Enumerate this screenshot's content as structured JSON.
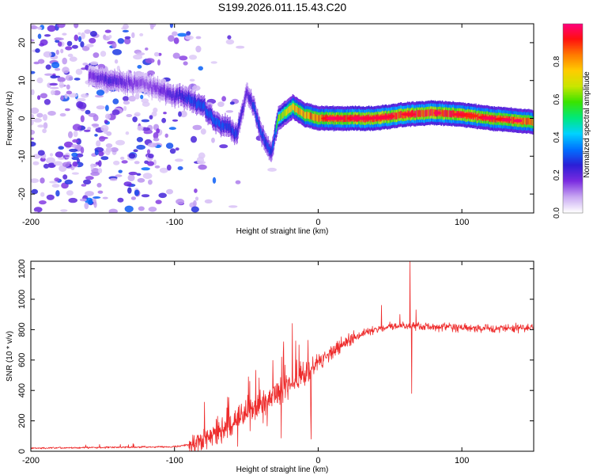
{
  "title": "S199.2026.011.15.43.C20",
  "chart_data": [
    {
      "type": "heatmap",
      "name": "spectrogram",
      "xlabel": "Height of straight line (km)",
      "ylabel": "Frequency (Hz)",
      "xlim": [
        -200,
        150
      ],
      "ylim": [
        -25,
        25
      ],
      "xticks": [
        -200,
        -100,
        0,
        100
      ],
      "yticks": [
        -20,
        -10,
        0,
        10,
        20
      ],
      "colorbar": {
        "label": "Normalized spectral amplitude",
        "range": [
          0,
          1
        ],
        "ticks": [
          "0.0",
          "0.2",
          "0.4",
          "0.6",
          "0.8"
        ],
        "colors": [
          "#ffffff",
          "#c7a6f2",
          "#7a2be0",
          "#2b1fd6",
          "#0070ff",
          "#00d2ff",
          "#00e87a",
          "#39e300",
          "#c9e600",
          "#ffcc00",
          "#ff7a00",
          "#ff1010",
          "#ff0080"
        ]
      },
      "trace": [
        {
          "x": -200,
          "f": 20,
          "a": 0.12
        },
        {
          "x": -170,
          "f": 12,
          "a": 0.18
        },
        {
          "x": -145,
          "f": 10,
          "a": 0.35
        },
        {
          "x": -120,
          "f": 9,
          "a": 0.22
        },
        {
          "x": -100,
          "f": 6,
          "a": 0.35
        },
        {
          "x": -90,
          "f": 5,
          "a": 0.45
        },
        {
          "x": -80,
          "f": 3,
          "a": 0.5
        },
        {
          "x": -72,
          "f": -1,
          "a": 0.5
        },
        {
          "x": -65,
          "f": -2,
          "a": 0.45
        },
        {
          "x": -57,
          "f": -4,
          "a": 0.45
        },
        {
          "x": -50,
          "f": 7,
          "a": 0.3
        },
        {
          "x": -45,
          "f": 3,
          "a": 0.45
        },
        {
          "x": -40,
          "f": -4,
          "a": 0.45
        },
        {
          "x": -33,
          "f": -9,
          "a": 0.45
        },
        {
          "x": -28,
          "f": 0,
          "a": 0.6
        },
        {
          "x": -18,
          "f": 3,
          "a": 0.75
        },
        {
          "x": -10,
          "f": 1,
          "a": 0.8
        },
        {
          "x": 0,
          "f": 0,
          "a": 0.85
        },
        {
          "x": 20,
          "f": 0,
          "a": 0.9
        },
        {
          "x": 40,
          "f": 0,
          "a": 0.92
        },
        {
          "x": 60,
          "f": 1,
          "a": 0.9
        },
        {
          "x": 80,
          "f": 1.5,
          "a": 0.92
        },
        {
          "x": 100,
          "f": 1,
          "a": 0.9
        },
        {
          "x": 120,
          "f": 0,
          "a": 0.88
        },
        {
          "x": 150,
          "f": -1,
          "a": 0.85
        }
      ]
    },
    {
      "type": "line",
      "name": "snr",
      "xlabel": "Height of straight line (km)",
      "ylabel": "SNR (10 * v/v)",
      "xlim": [
        -200,
        150
      ],
      "ylim": [
        0,
        1250
      ],
      "xticks": [
        -200,
        -100,
        0,
        100
      ],
      "yticks": [
        0,
        200,
        400,
        600,
        800,
        1000,
        1200
      ],
      "color": "#ee2b2b",
      "envelope": [
        {
          "x": -200,
          "y": 20
        },
        {
          "x": -150,
          "y": 25
        },
        {
          "x": -100,
          "y": 30
        },
        {
          "x": -85,
          "y": 50
        },
        {
          "x": -75,
          "y": 110
        },
        {
          "x": -65,
          "y": 160
        },
        {
          "x": -55,
          "y": 210
        },
        {
          "x": -45,
          "y": 280
        },
        {
          "x": -35,
          "y": 340
        },
        {
          "x": -25,
          "y": 400
        },
        {
          "x": -15,
          "y": 470
        },
        {
          "x": -5,
          "y": 550
        },
        {
          "x": 5,
          "y": 620
        },
        {
          "x": 15,
          "y": 690
        },
        {
          "x": 25,
          "y": 750
        },
        {
          "x": 35,
          "y": 790
        },
        {
          "x": 50,
          "y": 820
        },
        {
          "x": 65,
          "y": 825
        },
        {
          "x": 80,
          "y": 820
        },
        {
          "x": 100,
          "y": 810
        },
        {
          "x": 125,
          "y": 805
        },
        {
          "x": 150,
          "y": 815
        }
      ],
      "spikes": [
        {
          "x": -70,
          "y": 230
        },
        {
          "x": -62,
          "y": 280
        },
        {
          "x": -42,
          "y": 370
        },
        {
          "x": -30,
          "y": 430
        },
        {
          "x": -24,
          "y": 720
        },
        {
          "x": -21,
          "y": 340
        },
        {
          "x": -18,
          "y": 840
        },
        {
          "x": -12,
          "y": 560
        },
        {
          "x": -7,
          "y": 730
        },
        {
          "x": -5,
          "y": 80
        },
        {
          "x": 44,
          "y": 960
        },
        {
          "x": 57,
          "y": 900
        },
        {
          "x": 64,
          "y": 1250
        },
        {
          "x": 65,
          "y": 380
        },
        {
          "x": 68,
          "y": 930
        }
      ]
    }
  ]
}
